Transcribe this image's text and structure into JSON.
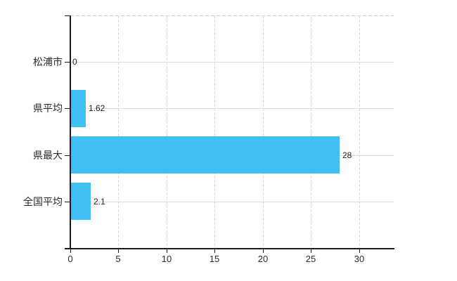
{
  "chart_data": {
    "type": "bar",
    "orientation": "horizontal",
    "title": "",
    "xlabel": "",
    "ylabel": "",
    "categories": [
      "松浦市",
      "県平均",
      "県最大",
      "全国平均"
    ],
    "values": [
      0,
      1.62,
      28,
      2.1
    ],
    "value_labels": [
      "0",
      "1.62",
      "28",
      "2.1"
    ],
    "xlim": [
      0,
      33.6
    ],
    "xticks": [
      0,
      5,
      10,
      15,
      20,
      25,
      30
    ],
    "xtick_labels": [
      "0",
      "5",
      "10",
      "15",
      "20",
      "25",
      "30"
    ],
    "grid": true,
    "legend": false,
    "colors": {
      "bar": "#3ec1f1",
      "axis": "#1a1a1a",
      "horizontal_gridline": "#d9ded9",
      "vertical_gridline": "#d9d9d9",
      "top_border": "#cfcfcf",
      "text": "#2b2b2b",
      "background": "#ffffff"
    }
  }
}
